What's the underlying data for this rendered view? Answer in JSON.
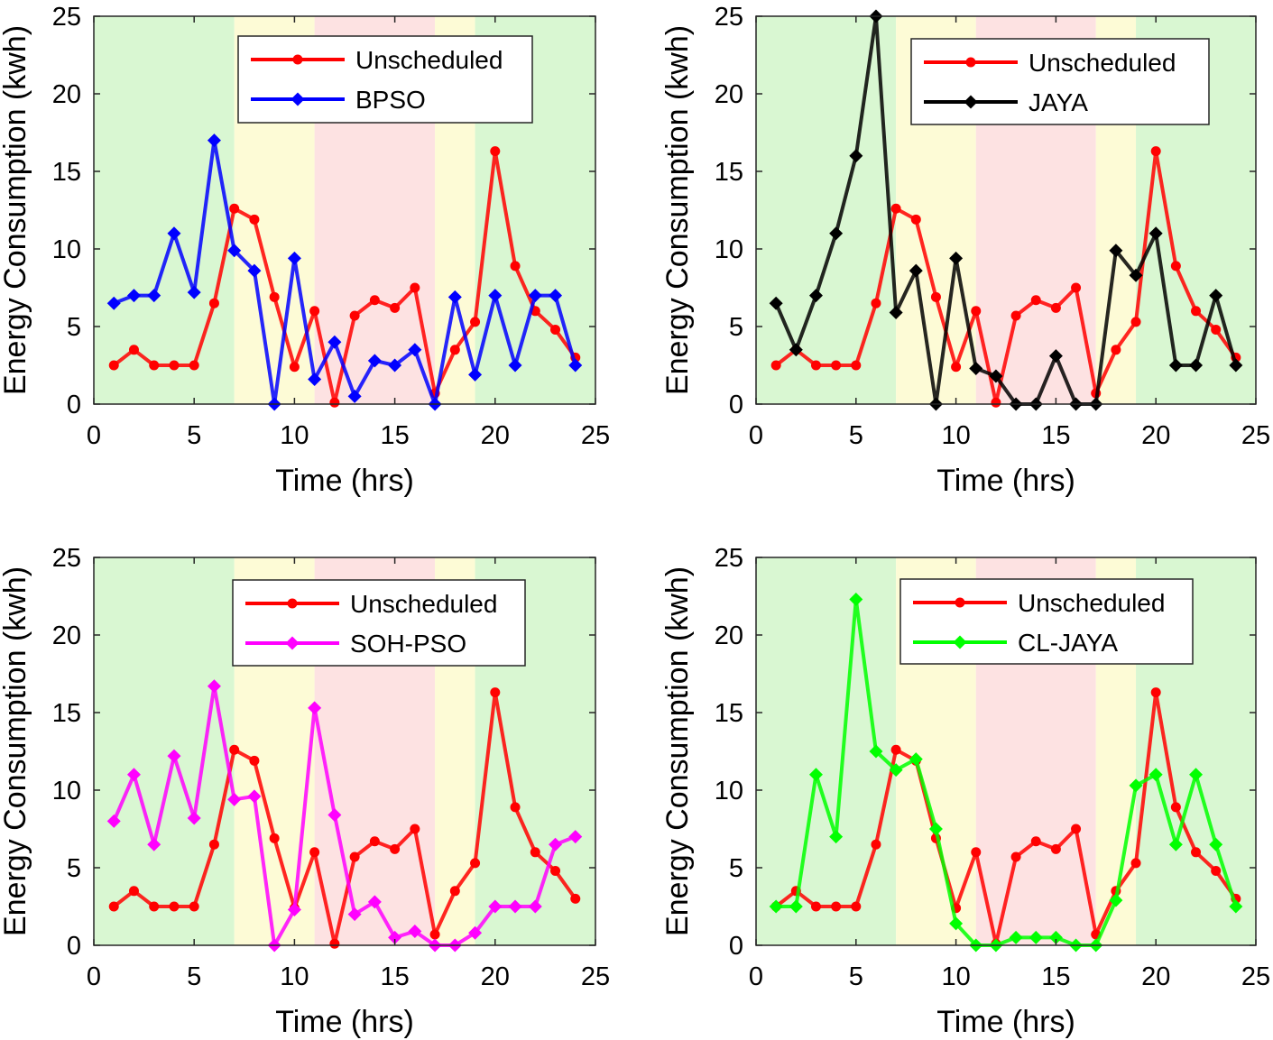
{
  "colors": {
    "offpeak": "#d9f7d2",
    "midpeak": "#fdfbd6",
    "onpeak": "#fde2e2",
    "unscheduled": "#ff0000",
    "bpso": "#0000ff",
    "jaya": "#000000",
    "soh_pso": "#ff00ff",
    "cl_jaya": "#00ff00"
  },
  "chart_data": [
    {
      "type": "line",
      "id": "bpso",
      "xlabel": "Time (hrs)",
      "ylabel": "Energy Consumption (kwh)",
      "xlim": [
        0,
        25
      ],
      "ylim": [
        0,
        25
      ],
      "xticks": [
        "0",
        "5",
        "10",
        "15",
        "20",
        "25"
      ],
      "yticks": [
        "0",
        "5",
        "10",
        "15",
        "20",
        "25"
      ],
      "bands": [
        {
          "from": 0,
          "to": 7,
          "type": "offpeak"
        },
        {
          "from": 7,
          "to": 11,
          "type": "midpeak"
        },
        {
          "from": 11,
          "to": 17,
          "type": "onpeak"
        },
        {
          "from": 17,
          "to": 19,
          "type": "midpeak"
        },
        {
          "from": 19,
          "to": 25,
          "type": "offpeak"
        }
      ],
      "legend_position": "top-right",
      "x": [
        1,
        2,
        3,
        4,
        5,
        6,
        7,
        8,
        9,
        10,
        11,
        12,
        13,
        14,
        15,
        16,
        17,
        18,
        19,
        20,
        21,
        22,
        23,
        24
      ],
      "series": [
        {
          "name": "Unscheduled",
          "color_key": "unscheduled",
          "marker": "circle",
          "values": [
            2.5,
            3.5,
            2.5,
            2.5,
            2.5,
            6.5,
            12.6,
            11.9,
            6.9,
            2.4,
            6.0,
            0.1,
            5.7,
            6.7,
            6.2,
            7.5,
            0.7,
            3.5,
            5.3,
            16.3,
            8.9,
            6.0,
            4.8,
            3.0
          ]
        },
        {
          "name": "BPSO",
          "color_key": "bpso",
          "marker": "diamond",
          "values": [
            6.5,
            7.0,
            7.0,
            11.0,
            7.2,
            17.0,
            9.9,
            8.6,
            0.0,
            9.4,
            1.6,
            4.0,
            0.5,
            2.8,
            2.5,
            3.5,
            0.0,
            6.9,
            1.9,
            7.0,
            2.5,
            7.0,
            7.0,
            2.5
          ]
        }
      ]
    },
    {
      "type": "line",
      "id": "jaya",
      "xlabel": "Time (hrs)",
      "ylabel": "Energy Consumption (kwh)",
      "xlim": [
        0,
        25
      ],
      "ylim": [
        0,
        25
      ],
      "xticks": [
        "0",
        "5",
        "10",
        "15",
        "20",
        "25"
      ],
      "yticks": [
        "0",
        "5",
        "10",
        "15",
        "20",
        "25"
      ],
      "bands": [
        {
          "from": 0,
          "to": 7,
          "type": "offpeak"
        },
        {
          "from": 7,
          "to": 11,
          "type": "midpeak"
        },
        {
          "from": 11,
          "to": 17,
          "type": "onpeak"
        },
        {
          "from": 17,
          "to": 19,
          "type": "midpeak"
        },
        {
          "from": 19,
          "to": 25,
          "type": "offpeak"
        }
      ],
      "legend_position": "top-right",
      "x": [
        1,
        2,
        3,
        4,
        5,
        6,
        7,
        8,
        9,
        10,
        11,
        12,
        13,
        14,
        15,
        16,
        17,
        18,
        19,
        20,
        21,
        22,
        23,
        24
      ],
      "series": [
        {
          "name": "Unscheduled",
          "color_key": "unscheduled",
          "marker": "circle",
          "values": [
            2.5,
            3.5,
            2.5,
            2.5,
            2.5,
            6.5,
            12.6,
            11.9,
            6.9,
            2.4,
            6.0,
            0.1,
            5.7,
            6.7,
            6.2,
            7.5,
            0.7,
            3.5,
            5.3,
            16.3,
            8.9,
            6.0,
            4.8,
            3.0
          ]
        },
        {
          "name": "JAYA",
          "color_key": "jaya",
          "marker": "diamond",
          "values": [
            6.5,
            3.5,
            7.0,
            11.0,
            16.0,
            25.0,
            5.9,
            8.6,
            0.0,
            9.4,
            2.3,
            1.8,
            0.0,
            0.0,
            3.1,
            0.0,
            0.0,
            9.9,
            8.3,
            11.0,
            2.5,
            2.5,
            7.0,
            2.5
          ]
        }
      ]
    },
    {
      "type": "line",
      "id": "soh_pso",
      "xlabel": "Time (hrs)",
      "ylabel": "Energy Consumption (kwh)",
      "xlim": [
        0,
        25
      ],
      "ylim": [
        0,
        25
      ],
      "xticks": [
        "0",
        "5",
        "10",
        "15",
        "20",
        "25"
      ],
      "yticks": [
        "0",
        "5",
        "10",
        "15",
        "20",
        "25"
      ],
      "bands": [
        {
          "from": 0,
          "to": 7,
          "type": "offpeak"
        },
        {
          "from": 7,
          "to": 11,
          "type": "midpeak"
        },
        {
          "from": 11,
          "to": 17,
          "type": "onpeak"
        },
        {
          "from": 17,
          "to": 19,
          "type": "midpeak"
        },
        {
          "from": 19,
          "to": 25,
          "type": "offpeak"
        }
      ],
      "legend_position": "top-right",
      "x": [
        1,
        2,
        3,
        4,
        5,
        6,
        7,
        8,
        9,
        10,
        11,
        12,
        13,
        14,
        15,
        16,
        17,
        18,
        19,
        20,
        21,
        22,
        23,
        24
      ],
      "series": [
        {
          "name": "Unscheduled",
          "color_key": "unscheduled",
          "marker": "circle",
          "values": [
            2.5,
            3.5,
            2.5,
            2.5,
            2.5,
            6.5,
            12.6,
            11.9,
            6.9,
            2.4,
            6.0,
            0.1,
            5.7,
            6.7,
            6.2,
            7.5,
            0.7,
            3.5,
            5.3,
            16.3,
            8.9,
            6.0,
            4.8,
            3.0
          ]
        },
        {
          "name": "SOH-PSO",
          "color_key": "soh_pso",
          "marker": "diamond",
          "values": [
            8.0,
            11.0,
            6.5,
            12.2,
            8.2,
            16.7,
            9.4,
            9.6,
            0.0,
            2.3,
            15.3,
            8.4,
            2.0,
            2.8,
            0.5,
            0.9,
            0.0,
            0.0,
            0.8,
            2.5,
            2.5,
            2.5,
            6.5,
            7.0
          ]
        }
      ]
    },
    {
      "type": "line",
      "id": "cl_jaya",
      "xlabel": "Time (hrs)",
      "ylabel": "Energy Consumption (kwh)",
      "xlim": [
        0,
        25
      ],
      "ylim": [
        0,
        25
      ],
      "xticks": [
        "0",
        "5",
        "10",
        "15",
        "20",
        "25"
      ],
      "yticks": [
        "0",
        "5",
        "10",
        "15",
        "20",
        "25"
      ],
      "bands": [
        {
          "from": 0,
          "to": 7,
          "type": "offpeak"
        },
        {
          "from": 7,
          "to": 11,
          "type": "midpeak"
        },
        {
          "from": 11,
          "to": 17,
          "type": "onpeak"
        },
        {
          "from": 17,
          "to": 19,
          "type": "midpeak"
        },
        {
          "from": 19,
          "to": 25,
          "type": "offpeak"
        }
      ],
      "legend_position": "top-right",
      "x": [
        1,
        2,
        3,
        4,
        5,
        6,
        7,
        8,
        9,
        10,
        11,
        12,
        13,
        14,
        15,
        16,
        17,
        18,
        19,
        20,
        21,
        22,
        23,
        24
      ],
      "series": [
        {
          "name": "Unscheduled",
          "color_key": "unscheduled",
          "marker": "circle",
          "values": [
            2.5,
            3.5,
            2.5,
            2.5,
            2.5,
            6.5,
            12.6,
            11.9,
            6.9,
            2.4,
            6.0,
            0.1,
            5.7,
            6.7,
            6.2,
            7.5,
            0.7,
            3.5,
            5.3,
            16.3,
            8.9,
            6.0,
            4.8,
            3.0
          ]
        },
        {
          "name": "CL-JAYA",
          "color_key": "cl_jaya",
          "marker": "diamond",
          "values": [
            2.5,
            2.5,
            11.0,
            7.0,
            22.3,
            12.5,
            11.3,
            12.0,
            7.5,
            1.4,
            0.0,
            0.0,
            0.5,
            0.5,
            0.5,
            0.0,
            0.0,
            2.9,
            10.3,
            11.0,
            6.5,
            11.0,
            6.5,
            2.5
          ]
        }
      ]
    }
  ]
}
